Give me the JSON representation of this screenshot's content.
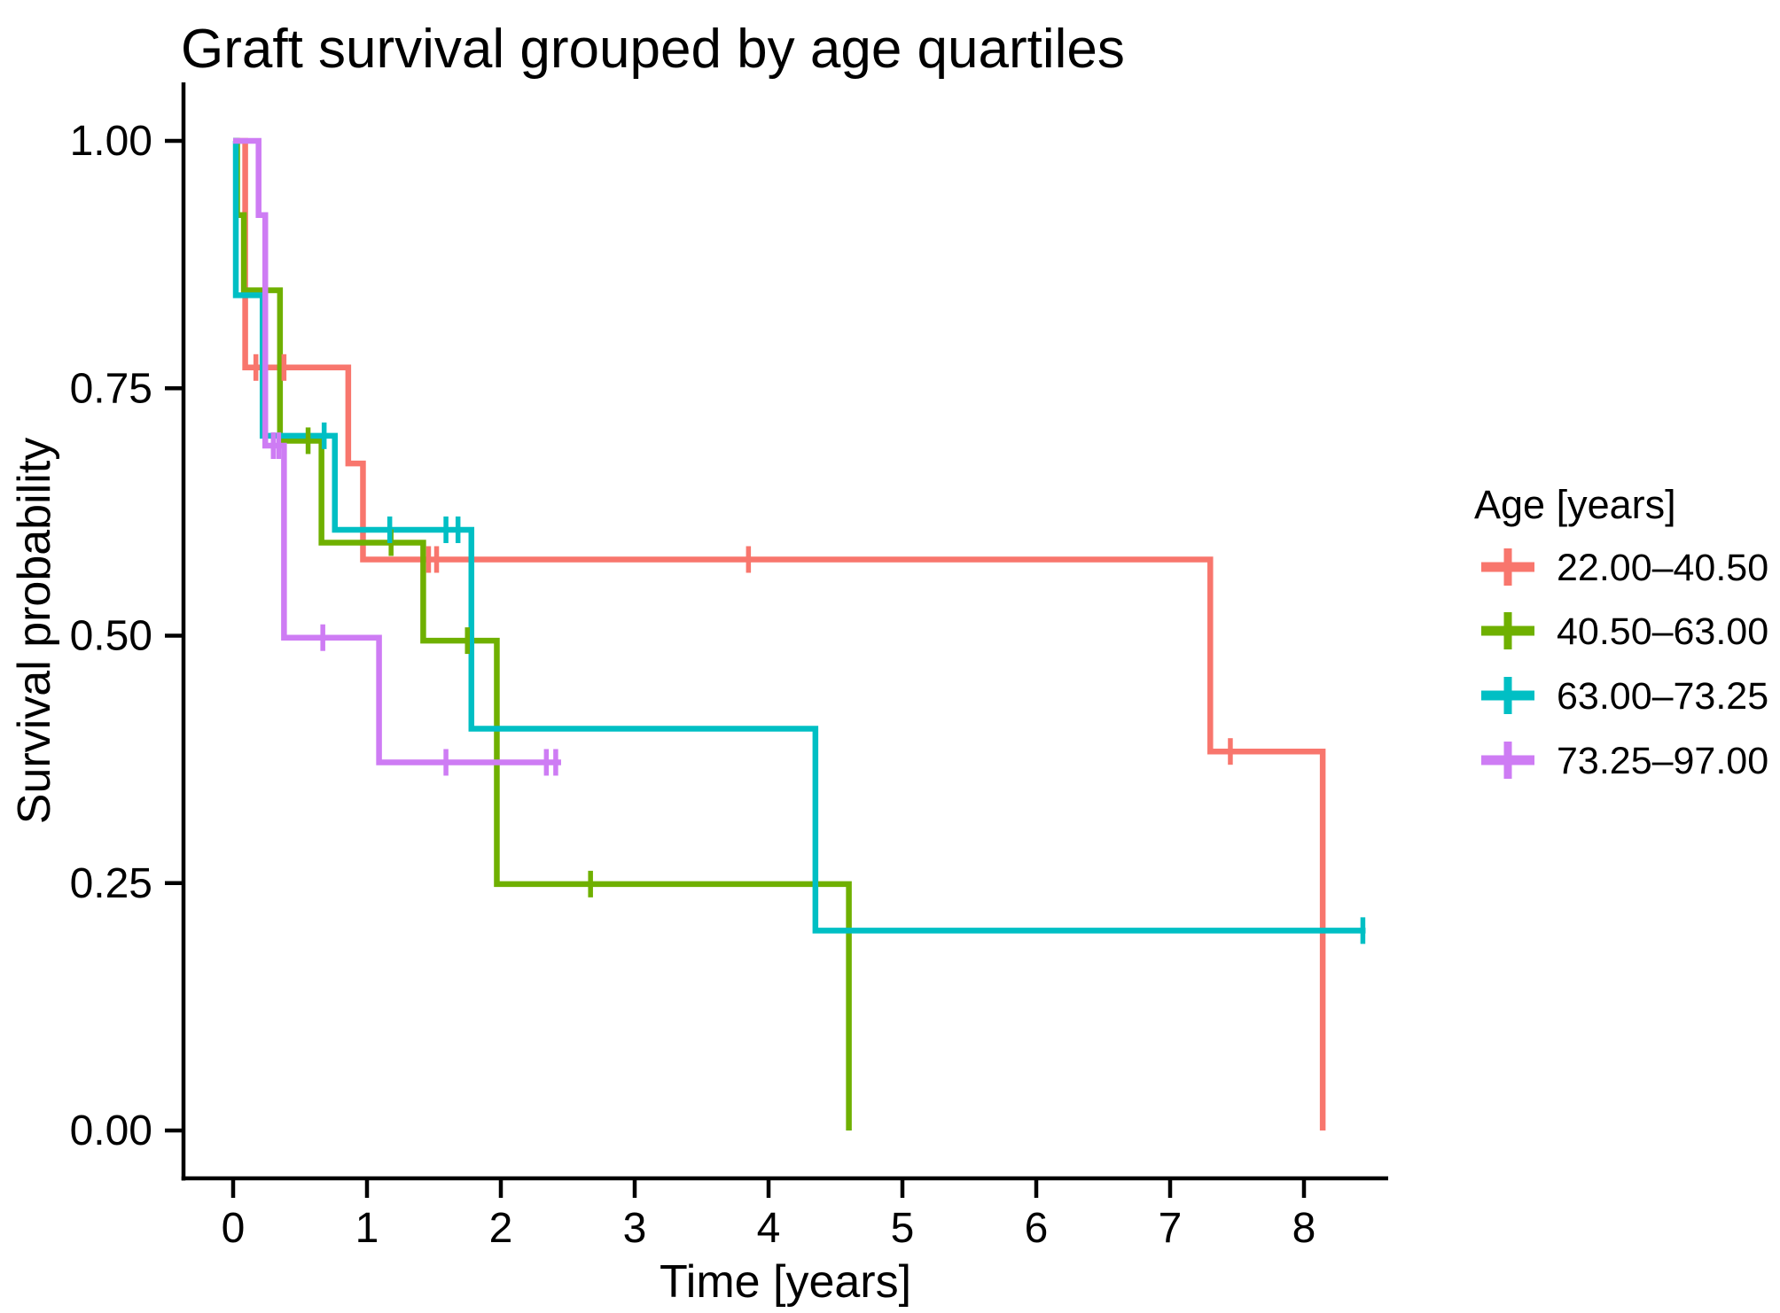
{
  "title": "Graft survival grouped by age quartiles",
  "axes": {
    "x": {
      "label": "Time [years]",
      "tick_values": [
        0,
        1,
        2,
        3,
        4,
        5,
        6,
        7,
        8
      ],
      "range": [
        0,
        8.62
      ]
    },
    "y": {
      "label": "Survival probability",
      "tick_labels": [
        "1.00",
        "0.75",
        "0.50",
        "0.25",
        "0.00"
      ],
      "tick_values": [
        1.0,
        0.75,
        0.5,
        0.25,
        0.0
      ],
      "range": [
        0,
        1
      ]
    }
  },
  "legend": {
    "title": "Age [years]",
    "position": "right",
    "items": [
      {
        "label": "22.00–40.50",
        "color": "#F8766D"
      },
      {
        "label": "40.50–63.00",
        "color": "#6FB000"
      },
      {
        "label": "63.00–73.25",
        "color": "#00BFC4"
      },
      {
        "label": "73.25–97.00",
        "color": "#CE7CF4"
      }
    ]
  },
  "chart_data": {
    "type": "line",
    "subtype": "kaplan-meier-step",
    "title": "Graft survival grouped by age quartiles",
    "xlabel": "Time [years]",
    "ylabel": "Survival probability",
    "xlim": [
      0,
      8.62
    ],
    "ylim": [
      0,
      1
    ],
    "grid": false,
    "legend_position": "right",
    "series": [
      {
        "name": "22.00–40.50",
        "color": "#F8766D",
        "steps": [
          [
            0,
            1.0
          ],
          [
            0.09,
            0.771
          ],
          [
            0.86,
            0.674
          ],
          [
            0.97,
            0.577
          ],
          [
            7.3,
            0.383
          ],
          [
            8.14,
            0.0
          ]
        ],
        "end_time": 8.14,
        "censors": [
          [
            0.17,
            0.771
          ],
          [
            0.38,
            0.771
          ],
          [
            1.46,
            0.577
          ],
          [
            1.52,
            0.577
          ],
          [
            3.85,
            0.577
          ],
          [
            7.45,
            0.383
          ]
        ]
      },
      {
        "name": "40.50–63.00",
        "color": "#6FB000",
        "steps": [
          [
            0,
            1.0
          ],
          [
            0.03,
            0.925
          ],
          [
            0.08,
            0.849
          ],
          [
            0.35,
            0.697
          ],
          [
            0.66,
            0.594
          ],
          [
            1.42,
            0.495
          ],
          [
            1.97,
            0.249
          ],
          [
            4.6,
            0.0
          ]
        ],
        "end_time": 4.6,
        "censors": [
          [
            0.56,
            0.697
          ],
          [
            1.18,
            0.594
          ],
          [
            1.75,
            0.495
          ],
          [
            2.67,
            0.249
          ]
        ]
      },
      {
        "name": "63.00–73.25",
        "color": "#00BFC4",
        "steps": [
          [
            0,
            1.0
          ],
          [
            0.02,
            0.844
          ],
          [
            0.22,
            0.702
          ],
          [
            0.76,
            0.607
          ],
          [
            1.78,
            0.406
          ],
          [
            4.35,
            0.202
          ]
        ],
        "end_time": 8.46,
        "censors": [
          [
            0.68,
            0.702
          ],
          [
            1.17,
            0.607
          ],
          [
            1.59,
            0.607
          ],
          [
            1.68,
            0.607
          ],
          [
            8.44,
            0.202
          ]
        ]
      },
      {
        "name": "73.25–97.00",
        "color": "#CE7CF4",
        "steps": [
          [
            0,
            1.0
          ],
          [
            0.19,
            0.925
          ],
          [
            0.24,
            0.692
          ],
          [
            0.38,
            0.498
          ],
          [
            1.09,
            0.372
          ]
        ],
        "end_time": 2.45,
        "censors": [
          [
            0.3,
            0.692
          ],
          [
            0.34,
            0.692
          ],
          [
            0.67,
            0.498
          ],
          [
            1.59,
            0.372
          ],
          [
            2.34,
            0.372
          ],
          [
            2.41,
            0.372
          ]
        ]
      }
    ]
  }
}
